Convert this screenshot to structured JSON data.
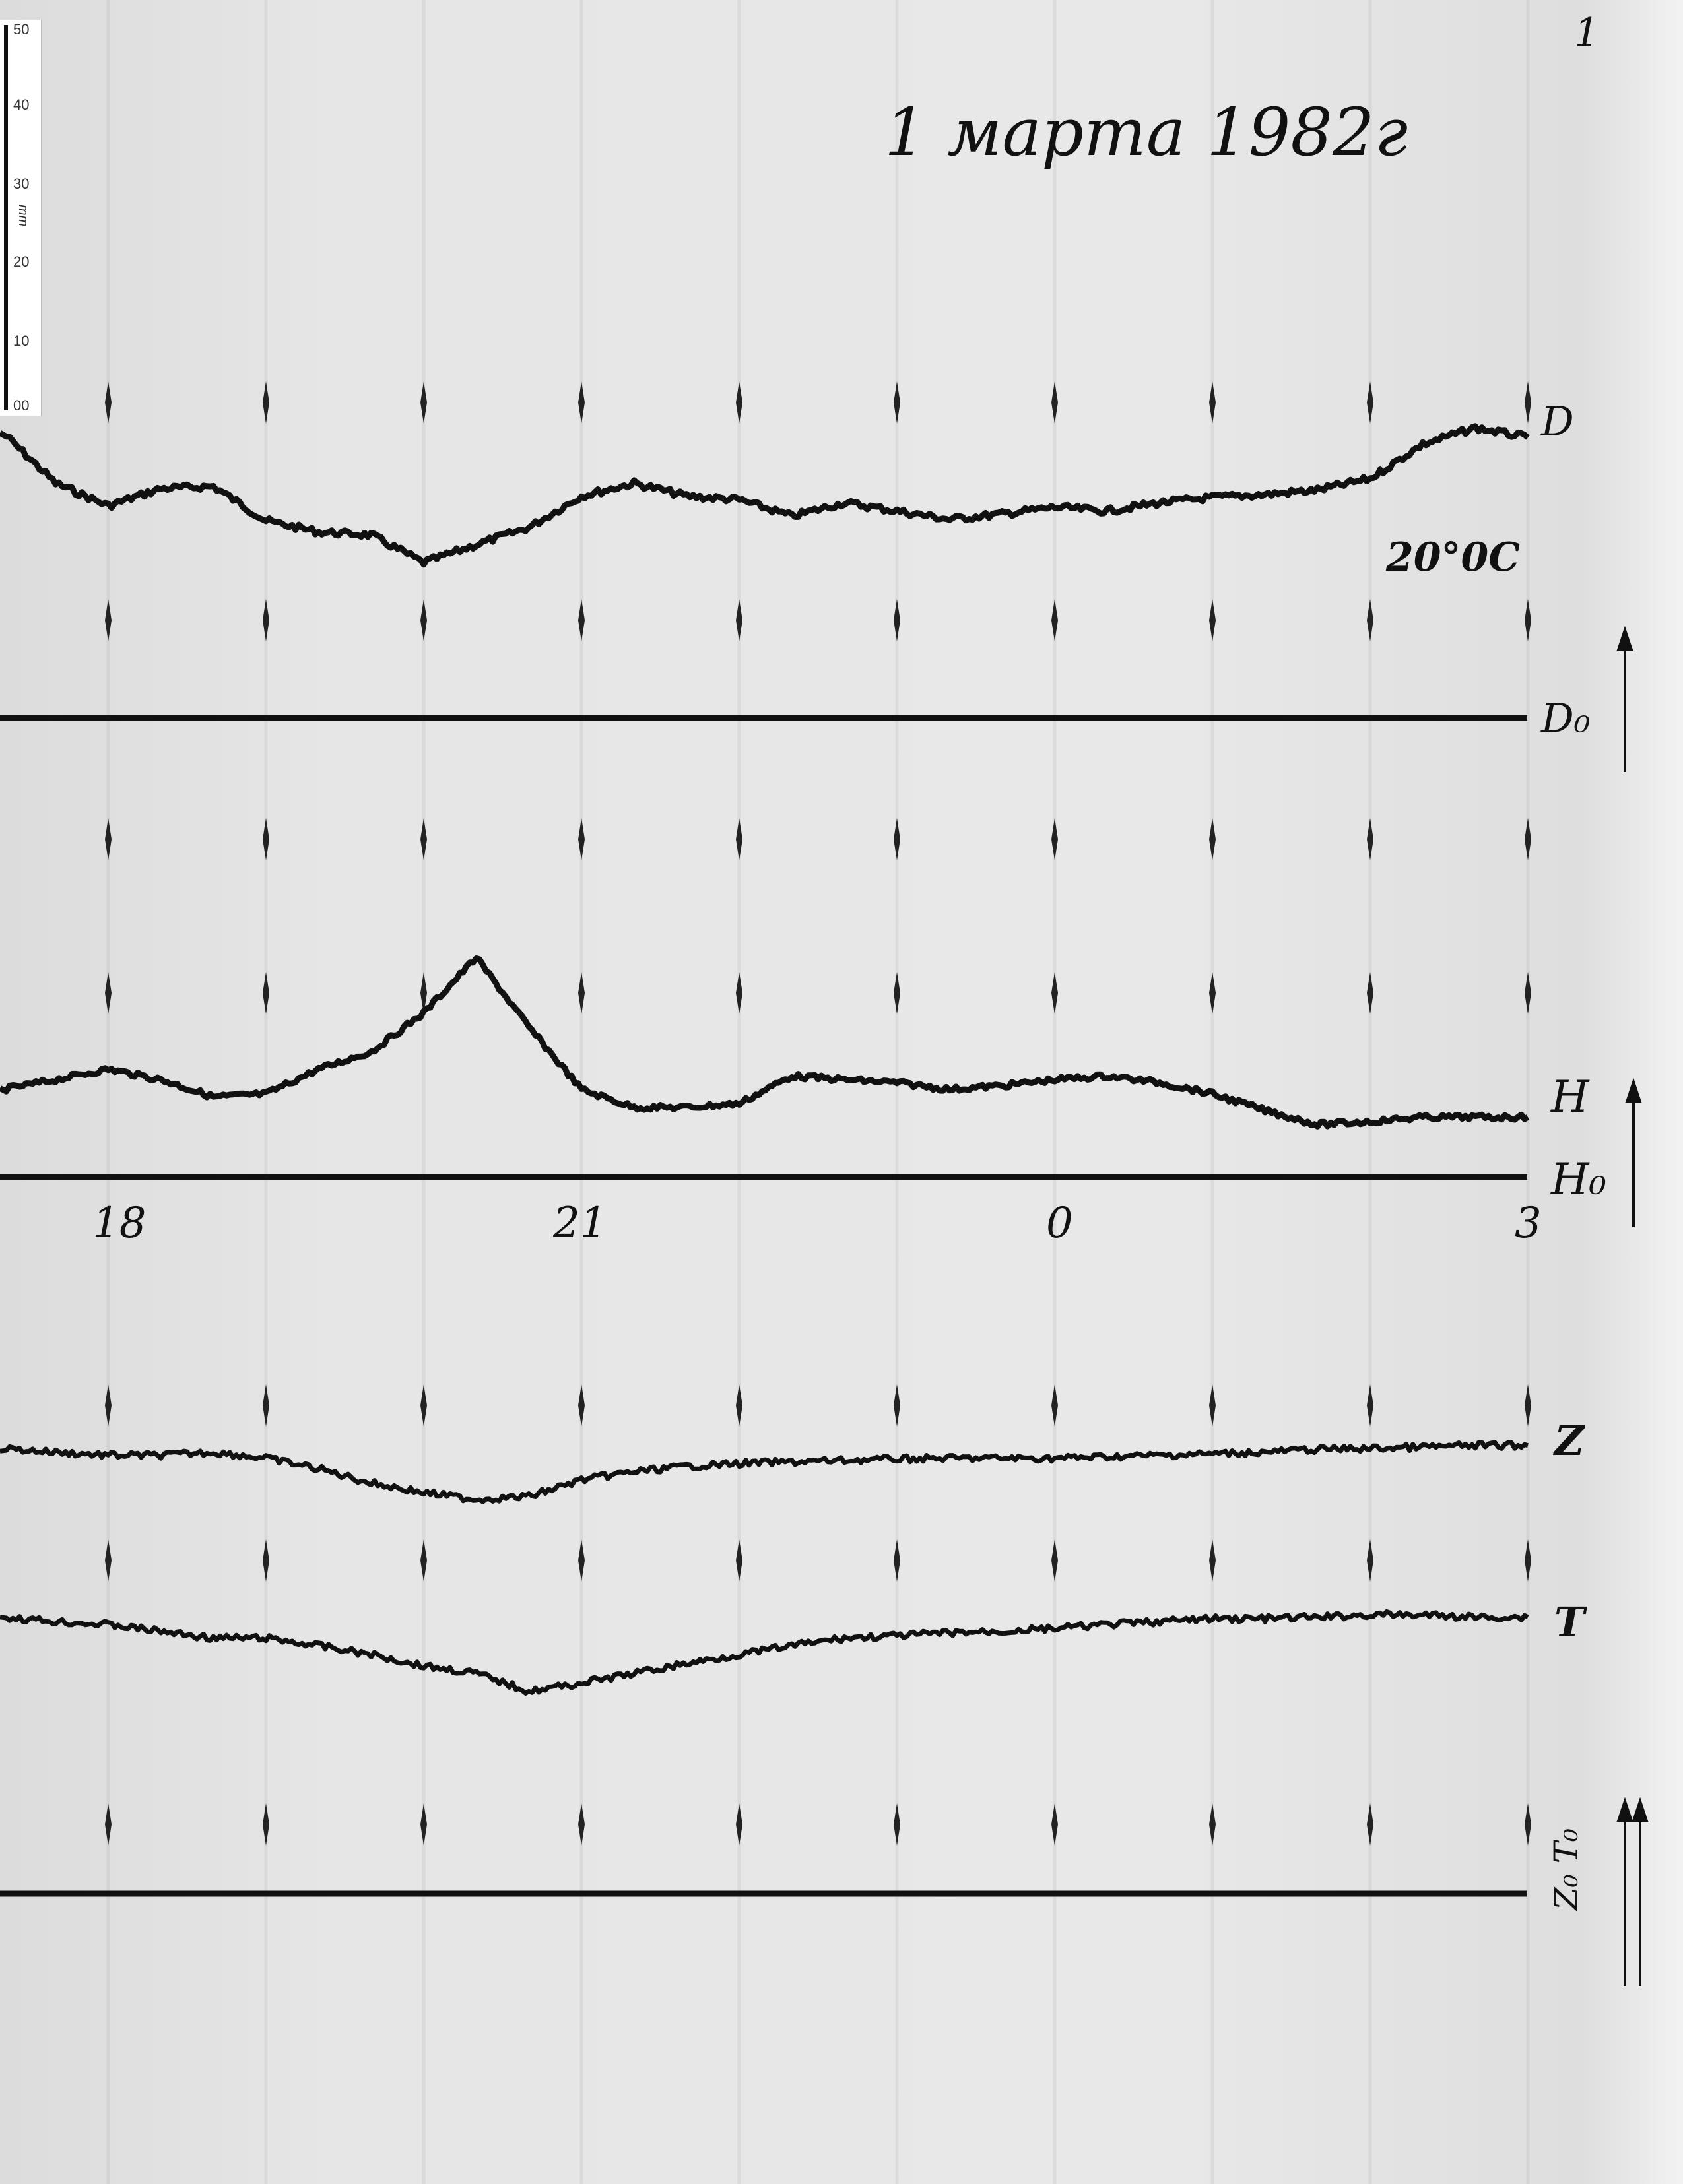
{
  "page_number": "1",
  "title": "1 марта 1982г",
  "temperature_note": "20°0C",
  "ruler": {
    "unit": "mm",
    "ticks": [
      "50",
      "40",
      "30",
      "20",
      "10",
      "00"
    ]
  },
  "chart_data": {
    "type": "line",
    "title": "1 марта 1982г",
    "x_tick_labels": [
      "18",
      "21",
      "0",
      "3"
    ],
    "x_ticks_hours": [
      "18:00",
      "19:00",
      "20:00",
      "21:00",
      "22:00",
      "23:00",
      "00:00",
      "01:00",
      "02:00",
      "03:00"
    ],
    "y_unit": "mm",
    "x": [
      "17:20",
      "17:40",
      "18:00",
      "18:20",
      "18:40",
      "19:00",
      "19:20",
      "19:40",
      "20:00",
      "20:20",
      "20:40",
      "21:00",
      "21:20",
      "21:40",
      "22:00",
      "22:20",
      "22:40",
      "23:00",
      "23:20",
      "23:40",
      "00:00",
      "00:20",
      "00:40",
      "01:00",
      "01:20",
      "01:40",
      "02:00",
      "02:20",
      "02:40",
      "03:00"
    ],
    "baselines": [
      {
        "name": "D₀"
      },
      {
        "name": "H₀"
      },
      {
        "name": "Z₀ T₀"
      }
    ],
    "series": [
      {
        "name": "D",
        "baseline": "D₀",
        "values": [
          38.0,
          31.3,
          28.3,
          30.6,
          30.9,
          26.3,
          24.8,
          24.4,
          20.7,
          23.1,
          25.4,
          29.6,
          31.3,
          29.6,
          29.1,
          26.9,
          28.7,
          27.6,
          26.5,
          27.2,
          28.1,
          27.6,
          28.7,
          29.4,
          29.8,
          30.4,
          31.9,
          36.5,
          38.7,
          37.4
        ]
      },
      {
        "name": "H",
        "baseline": "H₀",
        "values": [
          11.7,
          13.0,
          14.4,
          13.0,
          10.7,
          11.1,
          14.4,
          16.7,
          21.9,
          29.3,
          20.0,
          11.7,
          9.3,
          9.3,
          9.8,
          13.5,
          13.0,
          12.6,
          11.7,
          12.2,
          13.0,
          13.5,
          12.6,
          11.1,
          8.9,
          7.0,
          7.4,
          8.0,
          8.0,
          8.0
        ]
      },
      {
        "name": "Z",
        "baseline": "Z₀ T₀",
        "values": [
          59.4,
          58.9,
          58.5,
          58.5,
          58.9,
          58.1,
          56.7,
          54.8,
          53.5,
          52.6,
          53.0,
          55.2,
          56.3,
          57.0,
          57.4,
          57.6,
          57.8,
          58.0,
          58.1,
          58.1,
          58.1,
          58.3,
          58.5,
          58.7,
          58.9,
          59.3,
          59.4,
          59.6,
          59.8,
          59.8
        ]
      },
      {
        "name": "T",
        "baseline": "Z₀ T₀",
        "values": [
          36.9,
          36.3,
          35.9,
          35.0,
          34.1,
          34.1,
          33.1,
          31.9,
          30.4,
          29.4,
          27.0,
          28.1,
          29.4,
          30.7,
          31.9,
          33.1,
          34.1,
          34.4,
          34.8,
          35.0,
          35.4,
          35.9,
          36.3,
          36.7,
          36.7,
          36.9,
          37.2,
          37.2,
          36.9,
          36.9
        ]
      }
    ],
    "trace_color": "#111111",
    "paper_color": "#e6e6e6"
  }
}
